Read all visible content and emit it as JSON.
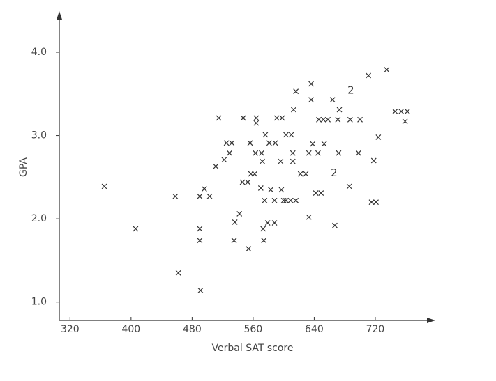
{
  "chart_data": {
    "type": "scatter",
    "marker": "x",
    "color": "#333333",
    "x_label": "Verbal SAT score",
    "y_label": "GPA",
    "xlim": [
      306,
      795
    ],
    "ylim": [
      0.78,
      4.46
    ],
    "xticks": [
      320,
      400,
      480,
      560,
      640,
      720
    ],
    "yticks": [
      {
        "value": 1,
        "label": "1.0"
      },
      {
        "value": 2,
        "label": "2.0"
      },
      {
        "value": 3,
        "label": "3.0"
      },
      {
        "value": 4,
        "label": "4.0"
      }
    ],
    "x": [
      365,
      406,
      458,
      462,
      490,
      490,
      490,
      491,
      496,
      503,
      511,
      515,
      522,
      525,
      529,
      532,
      536,
      535,
      542,
      546,
      547,
      553,
      554,
      556,
      557,
      562,
      564,
      564,
      563,
      570,
      571,
      573,
      574,
      572,
      575,
      576,
      579,
      581,
      583,
      588,
      588,
      589,
      591,
      598,
      597,
      596,
      600,
      603,
      603,
      610,
      609,
      613,
      616,
      612,
      612,
      616,
      622,
      629,
      633,
      633,
      636,
      636,
      638,
      642,
      645,
      646,
      649,
      652,
      653,
      658,
      664,
      667,
      673,
      671,
      672,
      686,
      687,
      698,
      700,
      711,
      715,
      718,
      721,
      724,
      735,
      746,
      754,
      762,
      759
    ],
    "values": [
      2.39,
      1.88,
      2.27,
      1.35,
      2.27,
      1.88,
      1.74,
      1.14,
      2.36,
      2.27,
      2.63,
      3.21,
      2.71,
      2.91,
      2.79,
      2.91,
      1.96,
      1.74,
      2.06,
      2.44,
      3.21,
      2.44,
      1.64,
      2.91,
      2.54,
      2.54,
      3.21,
      3.15,
      2.79,
      2.37,
      2.79,
      1.88,
      1.74,
      2.69,
      2.22,
      3.01,
      1.95,
      2.91,
      2.35,
      1.95,
      2.22,
      2.91,
      3.21,
      3.21,
      2.35,
      2.69,
      2.22,
      2.22,
      3.01,
      3.01,
      2.22,
      3.31,
      2.22,
      2.79,
      2.69,
      3.53,
      2.54,
      2.54,
      2.02,
      2.79,
      3.62,
      3.43,
      2.9,
      2.31,
      2.79,
      3.19,
      2.31,
      3.19,
      2.9,
      3.19,
      3.43,
      1.92,
      3.31,
      3.19,
      2.79,
      2.39,
      3.19,
      2.79,
      3.19,
      3.72,
      2.2,
      2.7,
      2.2,
      2.98,
      3.79,
      3.29,
      3.29,
      3.29,
      3.17
    ],
    "annotations": [
      {
        "text": "2",
        "x": 688,
        "y": 3.54
      },
      {
        "text": "2",
        "x": 666,
        "y": 2.55
      }
    ]
  }
}
